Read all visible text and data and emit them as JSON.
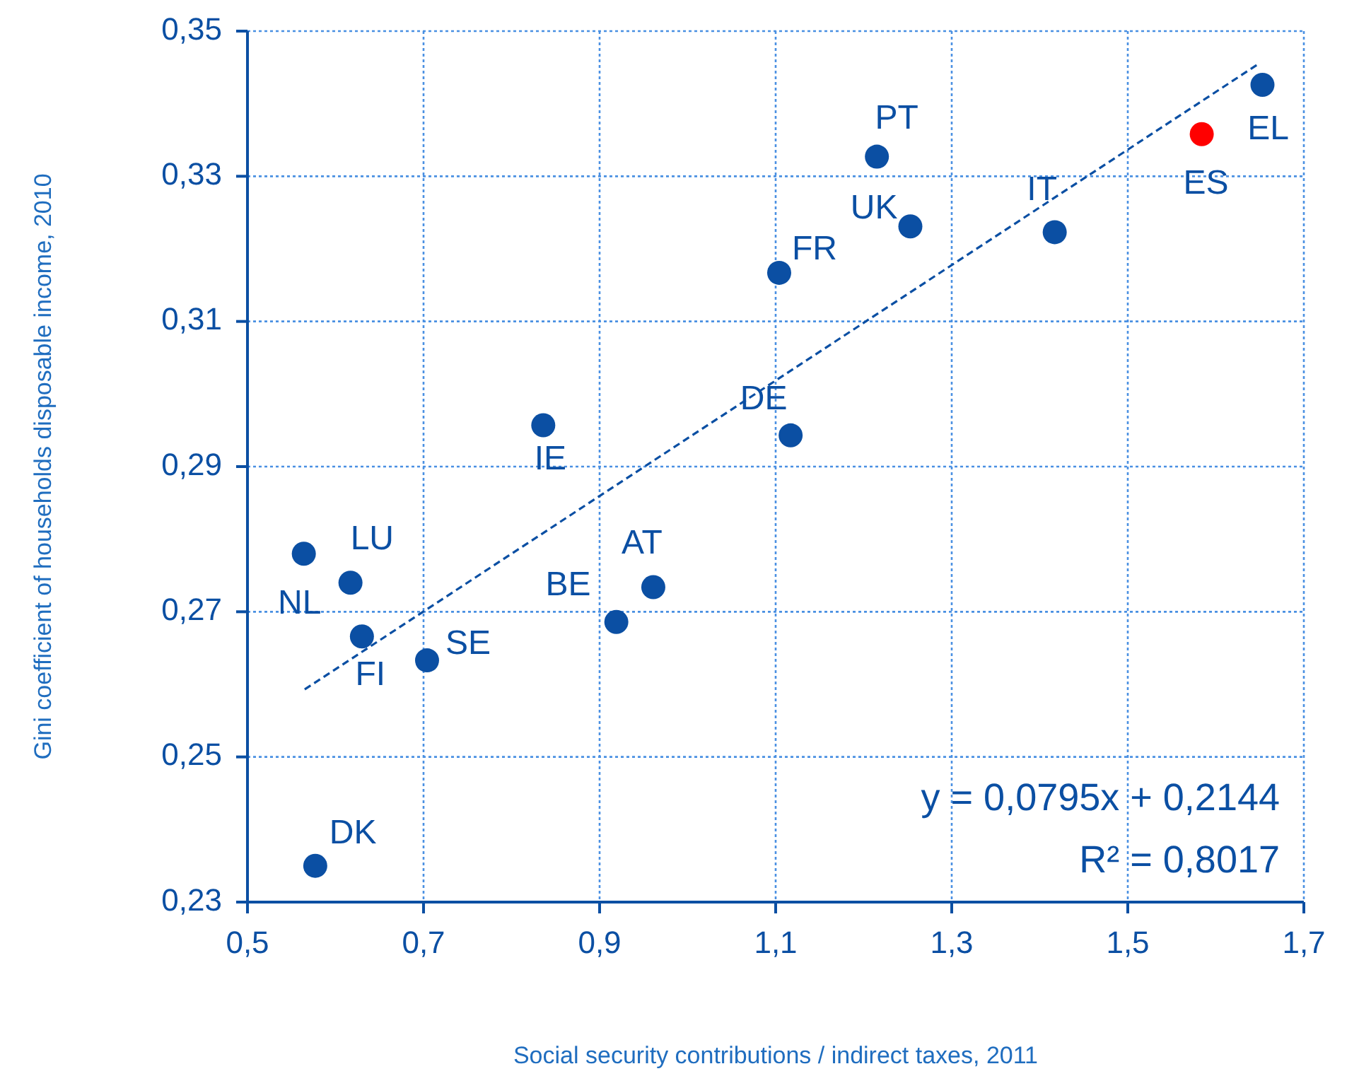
{
  "chart_data": {
    "type": "scatter",
    "xlabel": "Social security contributions / indirect taxes, 2011",
    "ylabel": "Gini coefficient of households disposable income, 2010",
    "xlim": [
      0.5,
      1.7
    ],
    "xticks": [
      {
        "value": 0.5,
        "label": "0,5"
      },
      {
        "value": 0.7,
        "label": "0,7"
      },
      {
        "value": 0.9,
        "label": "0,9"
      },
      {
        "value": 1.1,
        "label": "1,1"
      },
      {
        "value": 1.3,
        "label": "1,3"
      },
      {
        "value": 1.5,
        "label": "1,5"
      },
      {
        "value": 1.7,
        "label": "1,7"
      }
    ],
    "ylim": [
      0.23,
      0.35
    ],
    "yticks": [
      {
        "value": 0.23,
        "label": "0,23"
      },
      {
        "value": 0.25,
        "label": "0,25"
      },
      {
        "value": 0.27,
        "label": "0,27"
      },
      {
        "value": 0.29,
        "label": "0,29"
      },
      {
        "value": 0.31,
        "label": "0,31"
      },
      {
        "value": 0.33,
        "label": "0,33"
      },
      {
        "value": 0.35,
        "label": "0,35"
      }
    ],
    "grid": true,
    "legend": false,
    "marker": "circle",
    "series": [
      {
        "name": "DK",
        "color": "#0b4fa3",
        "x": [
          0.577
        ],
        "values": [
          0.235
        ]
      },
      {
        "name": "NL",
        "color": "#0b4fa3",
        "x": [
          0.564
        ],
        "values": [
          0.278
        ]
      },
      {
        "name": "LU",
        "color": "#0b4fa3",
        "x": [
          0.617
        ],
        "values": [
          0.274
        ]
      },
      {
        "name": "FI",
        "color": "#0b4fa3",
        "x": [
          0.63
        ],
        "values": [
          0.2666
        ]
      },
      {
        "name": "SE",
        "color": "#0b4fa3",
        "x": [
          0.704
        ],
        "values": [
          0.2633
        ]
      },
      {
        "name": "BE",
        "color": "#0b4fa3",
        "x": [
          0.919
        ],
        "values": [
          0.2686
        ]
      },
      {
        "name": "AT",
        "color": "#0b4fa3",
        "x": [
          0.961
        ],
        "values": [
          0.2734
        ]
      },
      {
        "name": "IE",
        "color": "#0b4fa3",
        "x": [
          0.836
        ],
        "values": [
          0.2957
        ]
      },
      {
        "name": "DE",
        "color": "#0b4fa3",
        "x": [
          1.117
        ],
        "values": [
          0.2943
        ]
      },
      {
        "name": "FR",
        "color": "#0b4fa3",
        "x": [
          1.104
        ],
        "values": [
          0.3167
        ]
      },
      {
        "name": "PT",
        "color": "#0b4fa3",
        "x": [
          1.215
        ],
        "values": [
          0.3327
        ]
      },
      {
        "name": "UK",
        "color": "#0b4fa3",
        "x": [
          1.253
        ],
        "values": [
          0.3231
        ]
      },
      {
        "name": "IT",
        "color": "#0b4fa3",
        "x": [
          1.417
        ],
        "values": [
          0.3223
        ]
      },
      {
        "name": "ES",
        "color": "#ff0000",
        "x": [
          1.584
        ],
        "values": [
          0.3358
        ]
      },
      {
        "name": "EL",
        "color": "#0b4fa3",
        "x": [
          1.653
        ],
        "values": [
          0.3426
        ]
      },
      {
        "type": "line",
        "color": "#0b4fa3",
        "line_style": "dashed",
        "marker": "none",
        "x": [
          0.565,
          1.65
        ],
        "values": [
          0.2593,
          0.3456
        ]
      }
    ],
    "annotations": [
      "y = 0,0795x + 0,2144",
      "R² = 0,8017"
    ]
  }
}
